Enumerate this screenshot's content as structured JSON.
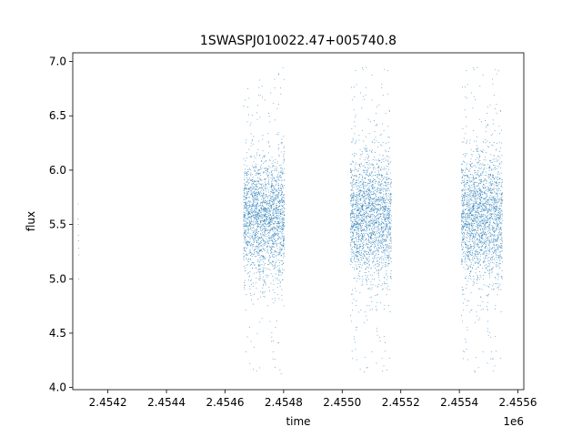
{
  "chart_data": {
    "type": "scatter",
    "title": "1SWASPJ010022.47+005740.8",
    "xlabel": "time",
    "ylabel": "flux",
    "x_offset_label": "1e6",
    "xlim": [
      2454080,
      2455620
    ],
    "ylim": [
      3.98,
      7.08
    ],
    "x_ticks": [
      2454200,
      2454400,
      2454600,
      2454800,
      2455000,
      2455200,
      2455400,
      2455600
    ],
    "x_tick_labels": [
      "2.4542",
      "2.4544",
      "2.4546",
      "2.4548",
      "2.4550",
      "2.4552",
      "2.4554",
      "2.4556"
    ],
    "y_ticks": [
      4.0,
      4.5,
      5.0,
      5.5,
      6.0,
      6.5,
      7.0
    ],
    "y_tick_labels": [
      "4.0",
      "4.5",
      "5.0",
      "5.5",
      "6.0",
      "6.5",
      "7.0"
    ],
    "grid": false,
    "marker_color": "#1f77b4",
    "series": [
      {
        "x": [
          2454098,
          2454098,
          2454099,
          2454099,
          2454100,
          2454100,
          2454101,
          2454101
        ],
        "y": [
          5.69,
          5.55,
          5.5,
          5.4,
          5.35,
          5.28,
          5.22,
          5.0
        ]
      }
    ],
    "clusters": [
      {
        "x_range": [
          2454663,
          2454803
        ],
        "y_center": 5.55,
        "y_spread": 0.28,
        "y_min": 4.12,
        "y_max": 6.95
      },
      {
        "x_range": [
          2455028,
          2455168
        ],
        "y_center": 5.55,
        "y_spread": 0.3,
        "y_min": 4.12,
        "y_max": 6.95
      },
      {
        "x_range": [
          2455407,
          2455547
        ],
        "y_center": 5.55,
        "y_spread": 0.3,
        "y_min": 4.12,
        "y_max": 6.95
      }
    ]
  }
}
